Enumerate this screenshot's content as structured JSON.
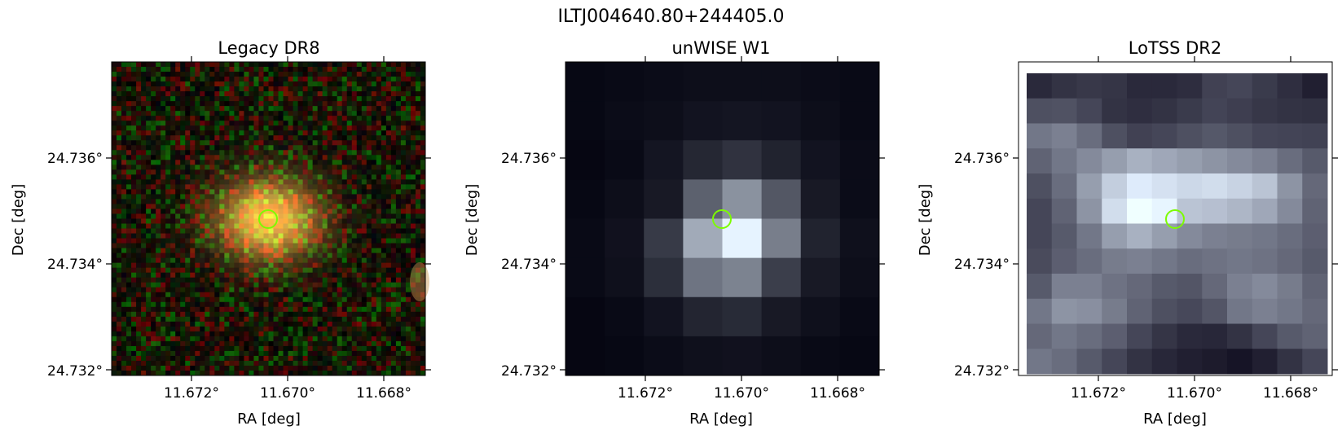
{
  "figure": {
    "title": "ILTJ004640.80+244405.0",
    "marker_color": "#7cfc00"
  },
  "panels": [
    {
      "title": "Legacy DR8",
      "style": "optical",
      "xlabel": "RA [deg]",
      "ylabel": "Dec [deg]",
      "xticks": [
        "11.672°",
        "11.670°",
        "11.668°"
      ],
      "yticks": [
        "24.736°",
        "24.734°",
        "24.732°"
      ]
    },
    {
      "title": "unWISE W1",
      "style": "infrared",
      "xlabel": "RA [deg]",
      "ylabel": "Dec [deg]",
      "xticks": [
        "11.672°",
        "11.670°",
        "11.668°"
      ],
      "yticks": [
        "24.736°",
        "24.734°",
        "24.732°"
      ]
    },
    {
      "title": "LoTSS DR2",
      "style": "radio",
      "xlabel": "RA [deg]",
      "ylabel": "Dec [deg]",
      "xticks": [
        "11.672°",
        "11.670°",
        "11.668°"
      ],
      "yticks": [
        "24.736°",
        "24.734°",
        "24.732°"
      ]
    }
  ]
}
